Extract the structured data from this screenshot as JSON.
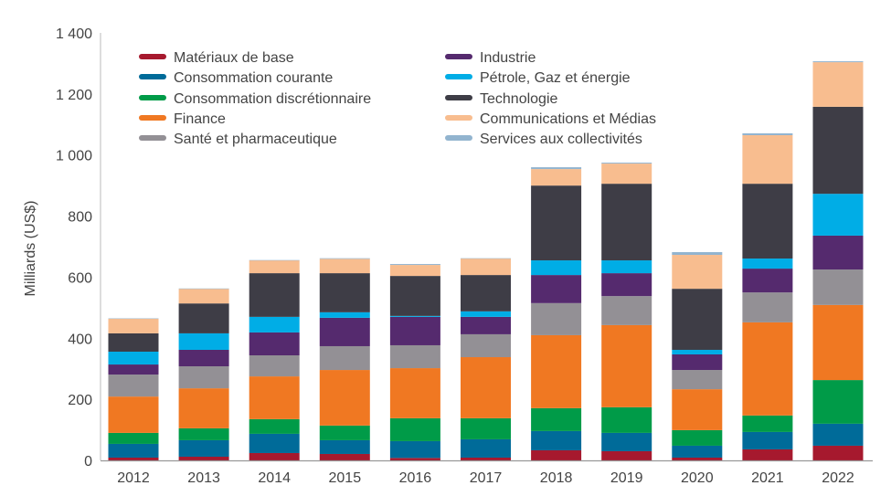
{
  "chart_data": {
    "type": "bar",
    "stacked": true,
    "title": "",
    "xlabel": "",
    "ylabel": "Milliards (US$)",
    "ylim": [
      0,
      1400
    ],
    "yticks": [
      0,
      200,
      400,
      600,
      800,
      1000,
      1200,
      1400
    ],
    "ytick_labels": [
      "0",
      "200",
      "400",
      "600",
      "800",
      "1 000",
      "1 200",
      "1 400"
    ],
    "grid": false,
    "legend_placement": "top",
    "categories": [
      "2012",
      "2013",
      "2014",
      "2015",
      "2016",
      "2017",
      "2018",
      "2019",
      "2020",
      "2021",
      "2022"
    ],
    "series": [
      {
        "name": "Matériaux de base",
        "color": "#a6192e",
        "values": [
          9,
          12,
          24,
          21,
          8,
          9,
          33,
          30,
          9,
          36,
          48
        ]
      },
      {
        "name": "Consommation courante",
        "color": "#006b99",
        "values": [
          45,
          54,
          63,
          45,
          55,
          60,
          63,
          60,
          39,
          57,
          72
        ]
      },
      {
        "name": "Consommation discrétionnaire",
        "color": "#009b48",
        "values": [
          36,
          39,
          48,
          48,
          75,
          69,
          75,
          84,
          51,
          54,
          143
        ]
      },
      {
        "name": "Finance",
        "color": "#f07822",
        "values": [
          119,
          131,
          140,
          182,
          164,
          200,
          239,
          269,
          134,
          305,
          246
        ]
      },
      {
        "name": "Santé et pharmaceutique",
        "color": "#939095",
        "values": [
          72,
          72,
          69,
          78,
          75,
          75,
          105,
          95,
          63,
          98,
          116
        ]
      },
      {
        "name": "Industrie",
        "color": "#552a6e",
        "values": [
          33,
          54,
          75,
          93,
          93,
          57,
          92,
          75,
          51,
          78,
          111
        ]
      },
      {
        "name": "Pétrole, Gaz et énergie",
        "color": "#00ade6",
        "values": [
          42,
          54,
          51,
          18,
          3,
          18,
          48,
          42,
          15,
          33,
          137
        ]
      },
      {
        "name": "Technologie",
        "color": "#3e3d46",
        "values": [
          60,
          98,
          143,
          128,
          131,
          119,
          245,
          251,
          200,
          245,
          285
        ]
      },
      {
        "name": "Communications et Médias",
        "color": "#f8bd8f",
        "values": [
          48,
          48,
          42,
          47,
          36,
          54,
          54,
          66,
          111,
          159,
          146
        ]
      },
      {
        "name": "Services aux collectivités",
        "color": "#92b4cf",
        "values": [
          1,
          1,
          1,
          2,
          3,
          1,
          6,
          3,
          9,
          6,
          3
        ]
      }
    ]
  }
}
